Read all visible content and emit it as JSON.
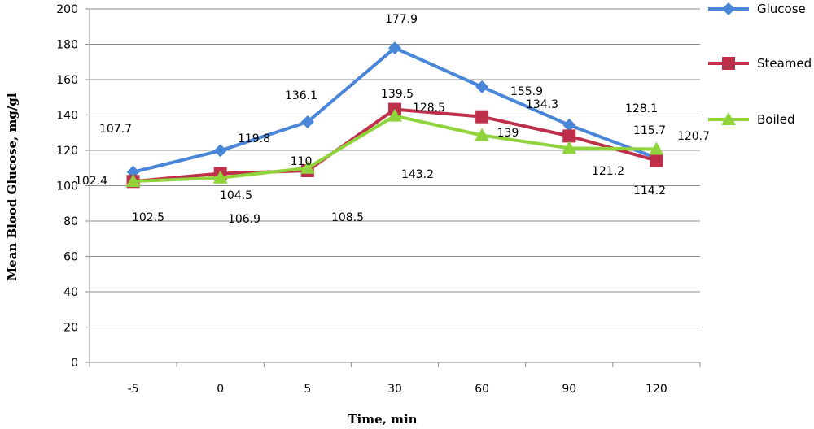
{
  "chart_data": {
    "type": "line",
    "title": "",
    "xlabel": "Time, min",
    "ylabel": "Mean Blood Glucose, mg/gl",
    "categories": [
      "-5",
      "0",
      "5",
      "30",
      "60",
      "90",
      "120"
    ],
    "ylim": [
      0,
      200
    ],
    "yticks": [
      0,
      20,
      40,
      60,
      80,
      100,
      120,
      140,
      160,
      180,
      200
    ],
    "grid": true,
    "legend_position": "right",
    "series": [
      {
        "name": "Glucose",
        "color": "#4a86d8",
        "marker": "diamond",
        "values": [
          107.7,
          119.8,
          136.1,
          177.9,
          155.9,
          134.3,
          115.7
        ]
      },
      {
        "name": "Steamed",
        "color": "#be2f4a",
        "marker": "square",
        "values": [
          102.4,
          106.9,
          108.5,
          143.2,
          139,
          128.1,
          114.2
        ]
      },
      {
        "name": "Boiled",
        "color": "#8ed43a",
        "marker": "triangle",
        "values": [
          102.5,
          104.5,
          110,
          139.5,
          128.5,
          121.2,
          120.7
        ]
      }
    ],
    "data_labels": [
      "107.7",
      "102.4",
      "102.5",
      "119.8",
      "104.5",
      "106.9",
      "136.1",
      "110",
      "108.5",
      "177.9",
      "139.5",
      "143.2",
      "155.9",
      "128.5",
      "139",
      "134.3",
      "128.1",
      "121.2",
      "115.7",
      "120.7",
      "114.2"
    ]
  }
}
